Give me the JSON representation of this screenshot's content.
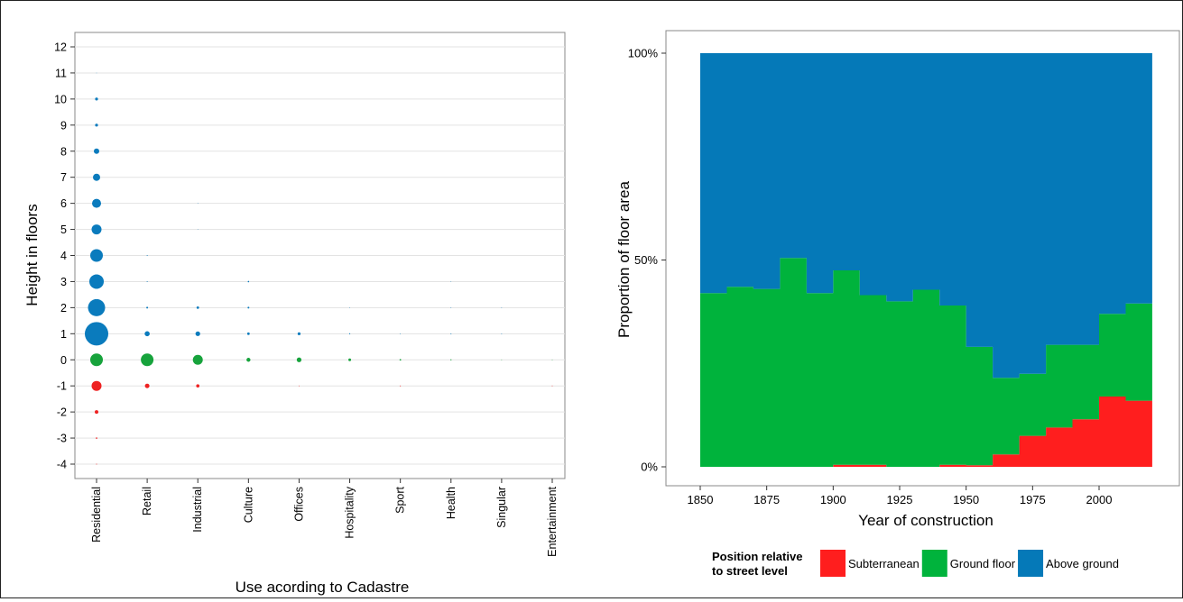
{
  "chart_data": [
    {
      "type": "scatter",
      "xlabel": "Use acording to Cadastre",
      "ylabel": "Height in floors",
      "categories": [
        "Residential",
        "Retail",
        "Industrial",
        "Culture",
        "Offices",
        "Hospitality",
        "Sport",
        "Health",
        "Singular",
        "Entertainment"
      ],
      "y_ticks": [
        "12",
        "11",
        "10",
        "9",
        "8",
        "7",
        "6",
        "5",
        "4",
        "3",
        "2",
        "1",
        "0",
        "-1",
        "-2",
        "-3",
        "-4"
      ],
      "ylim": [
        -4,
        12
      ],
      "grid": true,
      "colors": {
        "above": "#0a7bbd",
        "ground": "#17a33c",
        "below": "#ee2222"
      },
      "points": [
        {
          "use": "Residential",
          "floor": 11,
          "size": 0.2
        },
        {
          "use": "Residential",
          "floor": 10,
          "size": 1.6
        },
        {
          "use": "Residential",
          "floor": 9,
          "size": 1.6
        },
        {
          "use": "Residential",
          "floor": 8,
          "size": 3
        },
        {
          "use": "Residential",
          "floor": 7,
          "size": 4
        },
        {
          "use": "Residential",
          "floor": 6,
          "size": 5
        },
        {
          "use": "Residential",
          "floor": 5,
          "size": 5.5
        },
        {
          "use": "Residential",
          "floor": 4,
          "size": 7
        },
        {
          "use": "Residential",
          "floor": 3,
          "size": 8
        },
        {
          "use": "Residential",
          "floor": 2,
          "size": 9.5
        },
        {
          "use": "Residential",
          "floor": 1,
          "size": 13
        },
        {
          "use": "Residential",
          "floor": 0,
          "size": 7
        },
        {
          "use": "Residential",
          "floor": -1,
          "size": 5.5
        },
        {
          "use": "Residential",
          "floor": -2,
          "size": 2
        },
        {
          "use": "Residential",
          "floor": -3,
          "size": 0.8
        },
        {
          "use": "Residential",
          "floor": -4,
          "size": 0.5
        },
        {
          "use": "Retail",
          "floor": 4,
          "size": 0.5
        },
        {
          "use": "Retail",
          "floor": 3,
          "size": 0.5
        },
        {
          "use": "Retail",
          "floor": 2,
          "size": 1
        },
        {
          "use": "Retail",
          "floor": 1,
          "size": 2.8
        },
        {
          "use": "Retail",
          "floor": 0,
          "size": 7
        },
        {
          "use": "Retail",
          "floor": -1,
          "size": 2.5
        },
        {
          "use": "Industrial",
          "floor": 6,
          "size": 0.3
        },
        {
          "use": "Industrial",
          "floor": 5,
          "size": 0.3
        },
        {
          "use": "Industrial",
          "floor": 2,
          "size": 1.4
        },
        {
          "use": "Industrial",
          "floor": 1,
          "size": 2.6
        },
        {
          "use": "Industrial",
          "floor": 0,
          "size": 5.5
        },
        {
          "use": "Industrial",
          "floor": -1,
          "size": 1.8
        },
        {
          "use": "Culture",
          "floor": 3,
          "size": 0.8
        },
        {
          "use": "Culture",
          "floor": 2,
          "size": 1
        },
        {
          "use": "Culture",
          "floor": 1,
          "size": 1.4
        },
        {
          "use": "Culture",
          "floor": 0,
          "size": 2.2
        },
        {
          "use": "Offices",
          "floor": 1,
          "size": 1.6
        },
        {
          "use": "Offices",
          "floor": 0,
          "size": 2.6
        },
        {
          "use": "Offices",
          "floor": -1,
          "size": 0.4
        },
        {
          "use": "Hospitality",
          "floor": 2,
          "size": 0.3
        },
        {
          "use": "Hospitality",
          "floor": 1,
          "size": 0.6
        },
        {
          "use": "Hospitality",
          "floor": 0,
          "size": 1.5
        },
        {
          "use": "Sport",
          "floor": 1,
          "size": 0.4
        },
        {
          "use": "Sport",
          "floor": 0,
          "size": 0.9
        },
        {
          "use": "Sport",
          "floor": -1,
          "size": 0.5
        },
        {
          "use": "Health",
          "floor": 3,
          "size": 0.3
        },
        {
          "use": "Health",
          "floor": 2,
          "size": 0.4
        },
        {
          "use": "Health",
          "floor": 1,
          "size": 0.5
        },
        {
          "use": "Health",
          "floor": 0,
          "size": 0.6
        },
        {
          "use": "Singular",
          "floor": 2,
          "size": 0.3
        },
        {
          "use": "Singular",
          "floor": 1,
          "size": 0.4
        },
        {
          "use": "Singular",
          "floor": 0,
          "size": 0.4
        },
        {
          "use": "Entertainment",
          "floor": 0,
          "size": 0.4
        },
        {
          "use": "Entertainment",
          "floor": -1,
          "size": 0.4
        }
      ]
    },
    {
      "type": "area",
      "stacked": "proportional",
      "xlabel": "Year of construction",
      "ylabel": "Proportion of floor area",
      "x_ticks": [
        "1850",
        "1875",
        "1900",
        "1925",
        "1950",
        "1975",
        "2000"
      ],
      "y_ticks": [
        "0%",
        "50%",
        "100%"
      ],
      "xlim": [
        1845,
        2025
      ],
      "ylim": [
        0,
        1
      ],
      "legend": {
        "title_line1": "Position relative",
        "title_line2": "to street level",
        "placement": "bottom"
      },
      "x": [
        1850,
        1860,
        1870,
        1880,
        1890,
        1900,
        1910,
        1920,
        1930,
        1940,
        1950,
        1960,
        1970,
        1980,
        1990,
        2000,
        2010
      ],
      "x_end": 2020,
      "series": [
        {
          "name": "Subterranean",
          "color": "#ff1e1e",
          "values": [
            0,
            0,
            0,
            0,
            0,
            0.005,
            0.005,
            0,
            0,
            0.005,
            0.004,
            0.03,
            0.075,
            0.095,
            0.115,
            0.17,
            0.16
          ]
        },
        {
          "name": "Ground floor",
          "color": "#00b33c",
          "values": [
            0.42,
            0.435,
            0.43,
            0.505,
            0.42,
            0.47,
            0.41,
            0.4,
            0.428,
            0.385,
            0.286,
            0.185,
            0.15,
            0.2,
            0.18,
            0.2,
            0.235
          ]
        },
        {
          "name": "Above ground",
          "color": "#0579b8",
          "values": [
            0.58,
            0.565,
            0.57,
            0.495,
            0.58,
            0.525,
            0.585,
            0.6,
            0.572,
            0.61,
            0.71,
            0.785,
            0.775,
            0.705,
            0.705,
            0.63,
            0.605
          ]
        }
      ]
    }
  ]
}
